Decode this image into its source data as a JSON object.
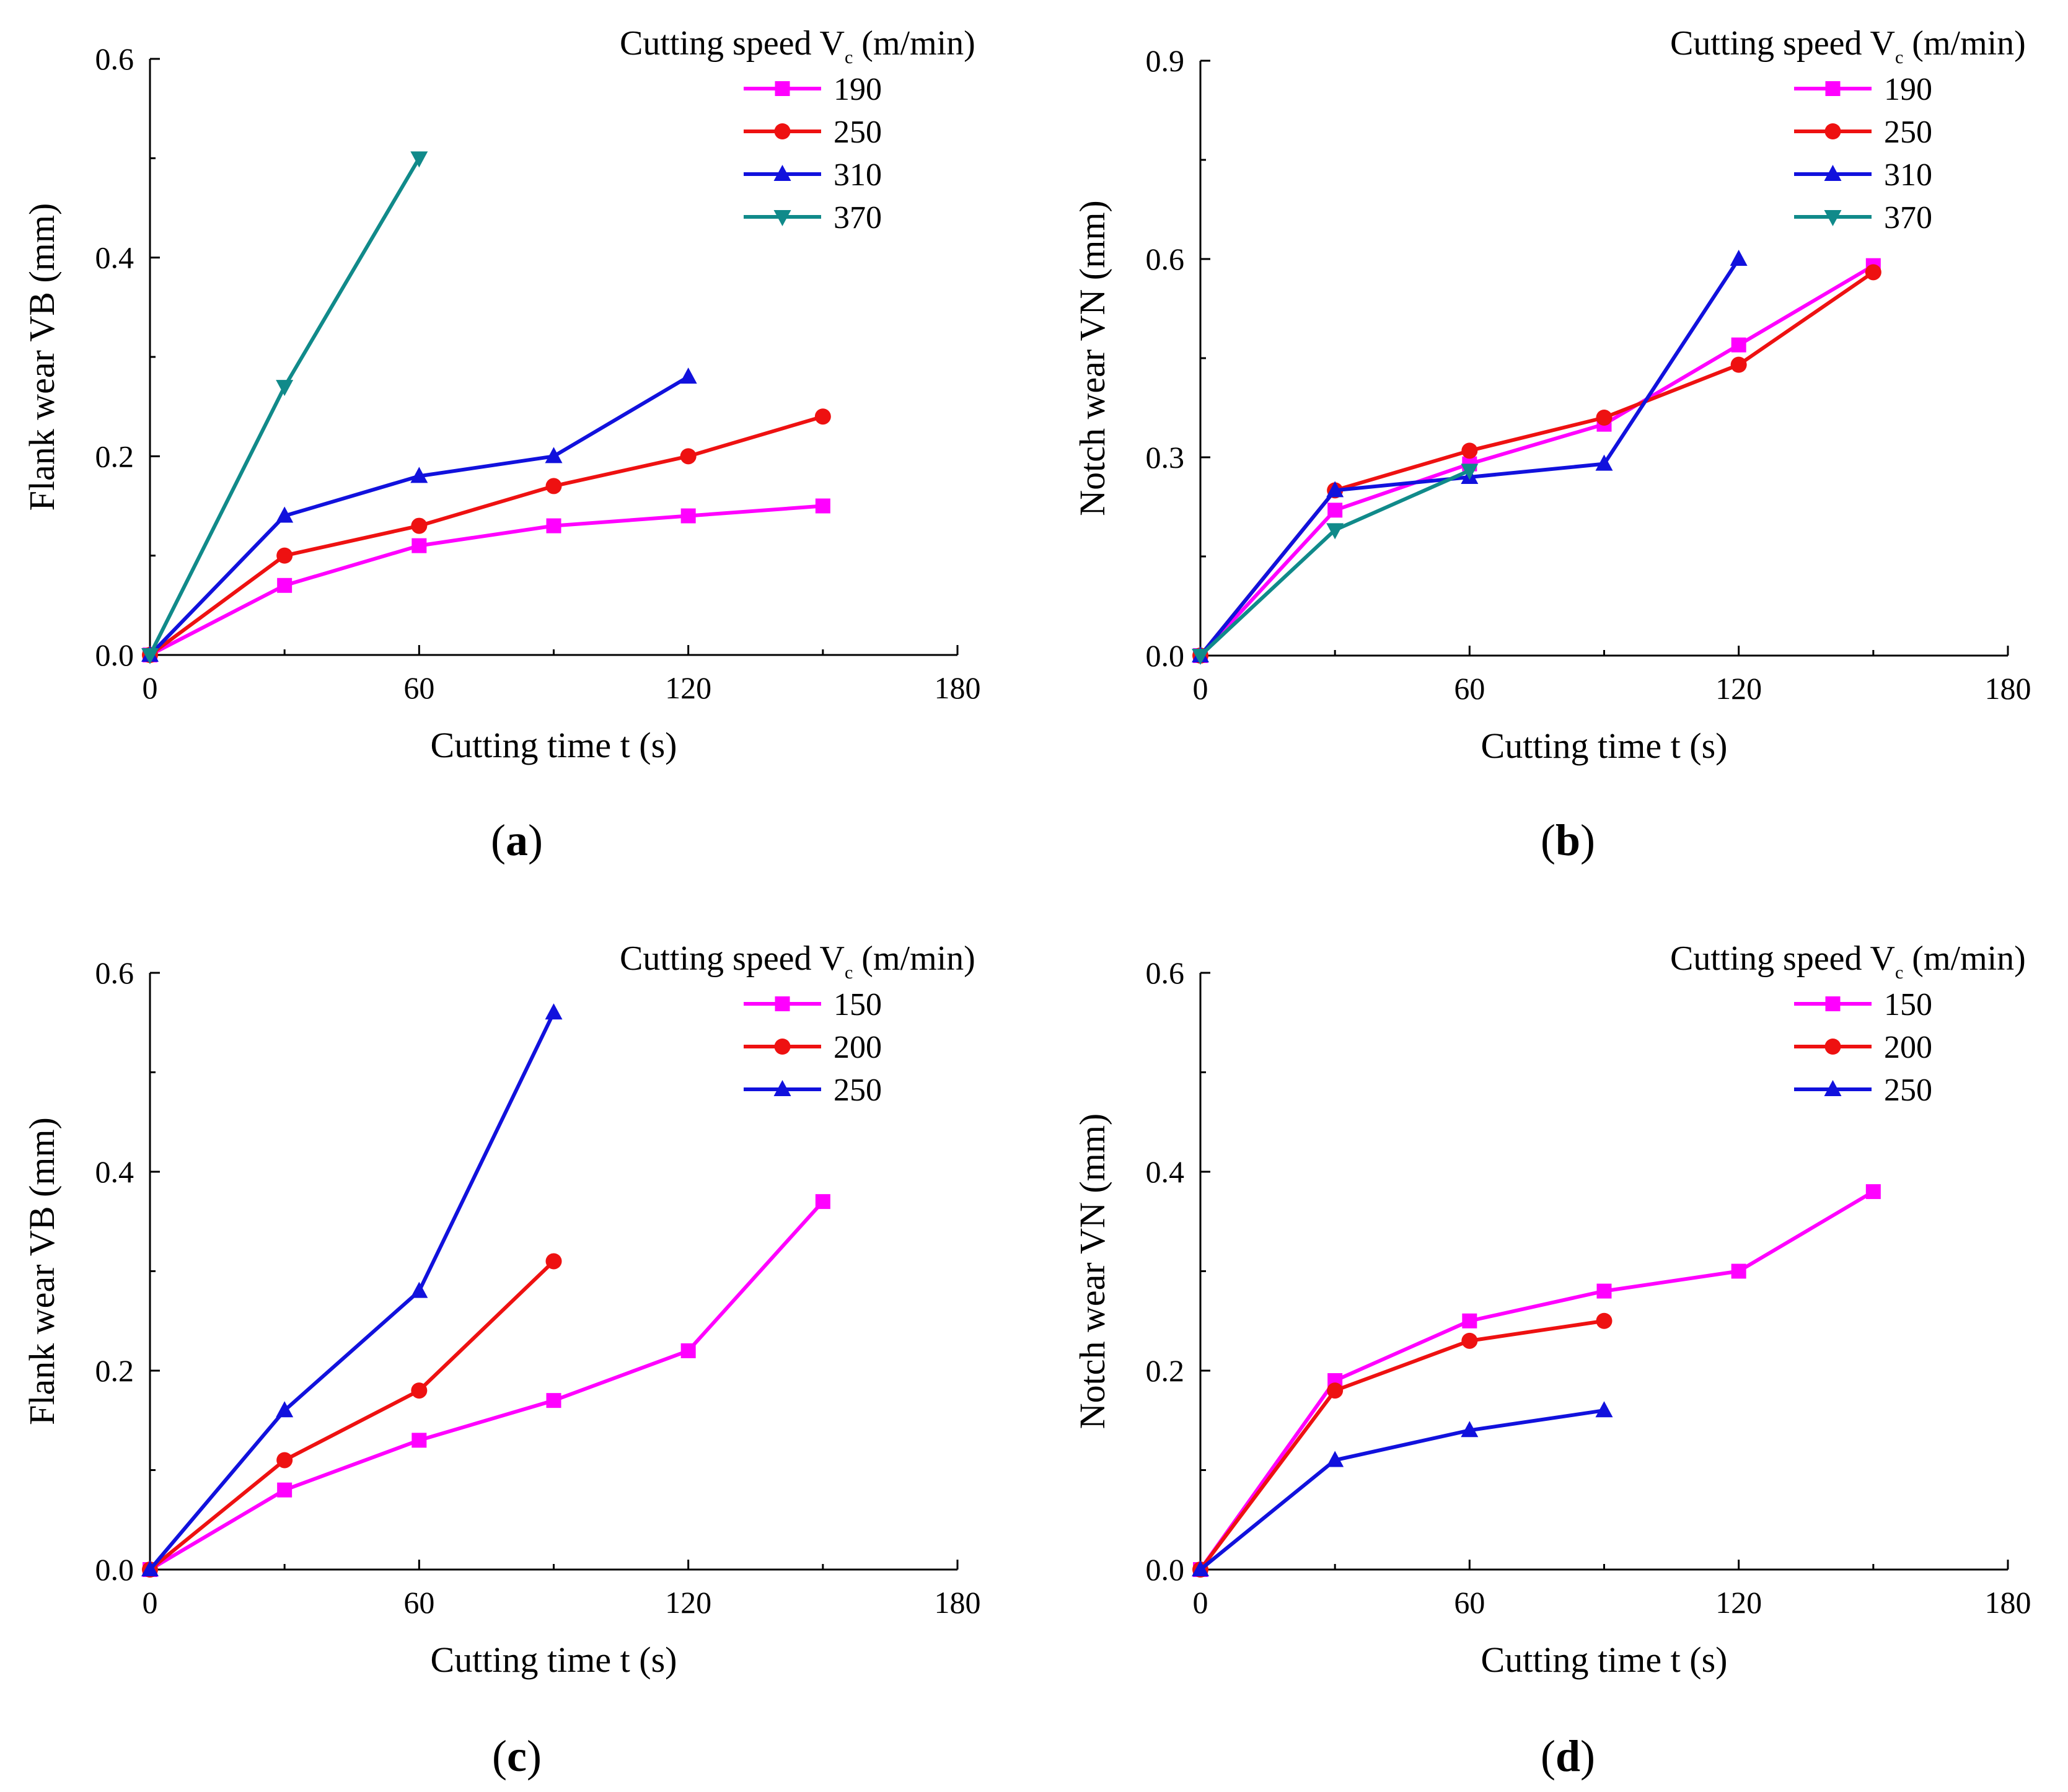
{
  "figure": {
    "legend_title_main": "Cutting speed V",
    "legend_title_sub": "c",
    "legend_title_unit": " (m/min)"
  },
  "series_styles": {
    "magenta": "#FF00FF",
    "red": "#EE1111",
    "blue": "#1111DD",
    "teal": "#108A8A"
  },
  "chart_data": [
    {
      "id": "a",
      "type": "line",
      "panel_label": "a",
      "xlabel": "Cutting time t (s)",
      "ylabel": "Flank wear VB (mm)",
      "xlim": [
        0,
        180
      ],
      "ylim": [
        0,
        0.6
      ],
      "xticks": [
        0,
        60,
        120,
        180
      ],
      "xtick_labels": [
        "0",
        "60",
        "120",
        "180"
      ],
      "yticks": [
        0,
        0.2,
        0.4,
        0.6
      ],
      "ytick_labels": [
        "0.0",
        "0.2",
        "0.4",
        "0.6"
      ],
      "legend_position": "top-right",
      "series": [
        {
          "name": "190",
          "color": "#FF00FF",
          "marker": "square",
          "x": [
            0,
            30,
            60,
            90,
            120,
            150
          ],
          "y": [
            0,
            0.07,
            0.11,
            0.13,
            0.14,
            0.15
          ]
        },
        {
          "name": "250",
          "color": "#EE1111",
          "marker": "circle",
          "x": [
            0,
            30,
            60,
            90,
            120,
            150
          ],
          "y": [
            0,
            0.1,
            0.13,
            0.17,
            0.2,
            0.24
          ]
        },
        {
          "name": "310",
          "color": "#1111DD",
          "marker": "triangle-up",
          "x": [
            0,
            30,
            60,
            90,
            120
          ],
          "y": [
            0,
            0.14,
            0.18,
            0.2,
            0.28
          ]
        },
        {
          "name": "370",
          "color": "#108A8A",
          "marker": "triangle-down",
          "x": [
            0,
            30,
            60
          ],
          "y": [
            0,
            0.27,
            0.5
          ]
        }
      ]
    },
    {
      "id": "b",
      "type": "line",
      "panel_label": "b",
      "xlabel": "Cutting time t (s)",
      "ylabel": "Notch wear VN (mm)",
      "xlim": [
        0,
        180
      ],
      "ylim": [
        0,
        0.9
      ],
      "xticks": [
        0,
        60,
        120,
        180
      ],
      "xtick_labels": [
        "0",
        "60",
        "120",
        "180"
      ],
      "yticks": [
        0,
        0.3,
        0.6,
        0.9
      ],
      "ytick_labels": [
        "0.0",
        "0.3",
        "0.6",
        "0.9"
      ],
      "legend_position": "top-right",
      "series": [
        {
          "name": "190",
          "color": "#FF00FF",
          "marker": "square",
          "x": [
            0,
            30,
            60,
            90,
            120,
            150
          ],
          "y": [
            0,
            0.22,
            0.29,
            0.35,
            0.47,
            0.59
          ]
        },
        {
          "name": "250",
          "color": "#EE1111",
          "marker": "circle",
          "x": [
            0,
            30,
            60,
            90,
            120,
            150
          ],
          "y": [
            0,
            0.25,
            0.31,
            0.36,
            0.44,
            0.58
          ]
        },
        {
          "name": "310",
          "color": "#1111DD",
          "marker": "triangle-up",
          "x": [
            0,
            30,
            60,
            90,
            120
          ],
          "y": [
            0,
            0.25,
            0.27,
            0.29,
            0.6
          ]
        },
        {
          "name": "370",
          "color": "#108A8A",
          "marker": "triangle-down",
          "x": [
            0,
            30,
            60
          ],
          "y": [
            0,
            0.19,
            0.28
          ]
        }
      ]
    },
    {
      "id": "c",
      "type": "line",
      "panel_label": "c",
      "xlabel": "Cutting time t (s)",
      "ylabel": "Flank wear VB (mm)",
      "xlim": [
        0,
        180
      ],
      "ylim": [
        0,
        0.6
      ],
      "xticks": [
        0,
        60,
        120,
        180
      ],
      "xtick_labels": [
        "0",
        "60",
        "120",
        "180"
      ],
      "yticks": [
        0,
        0.2,
        0.4,
        0.6
      ],
      "ytick_labels": [
        "0.0",
        "0.2",
        "0.4",
        "0.6"
      ],
      "legend_position": "top-right",
      "series": [
        {
          "name": "150",
          "color": "#FF00FF",
          "marker": "square",
          "x": [
            0,
            30,
            60,
            90,
            120,
            150
          ],
          "y": [
            0,
            0.08,
            0.13,
            0.17,
            0.22,
            0.37
          ]
        },
        {
          "name": "200",
          "color": "#EE1111",
          "marker": "circle",
          "x": [
            0,
            30,
            60,
            90
          ],
          "y": [
            0,
            0.11,
            0.18,
            0.31
          ]
        },
        {
          "name": "250",
          "color": "#1111DD",
          "marker": "triangle-up",
          "x": [
            0,
            30,
            60,
            90
          ],
          "y": [
            0,
            0.16,
            0.28,
            0.56
          ]
        }
      ]
    },
    {
      "id": "d",
      "type": "line",
      "panel_label": "d",
      "xlabel": "Cutting time t (s)",
      "ylabel": "Notch wear VN (mm)",
      "xlim": [
        0,
        180
      ],
      "ylim": [
        0,
        0.6
      ],
      "xticks": [
        0,
        60,
        120,
        180
      ],
      "xtick_labels": [
        "0",
        "60",
        "120",
        "180"
      ],
      "yticks": [
        0,
        0.2,
        0.4,
        0.6
      ],
      "ytick_labels": [
        "0.0",
        "0.2",
        "0.4",
        "0.6"
      ],
      "legend_position": "top-right",
      "series": [
        {
          "name": "150",
          "color": "#FF00FF",
          "marker": "square",
          "x": [
            0,
            30,
            60,
            90,
            120,
            150
          ],
          "y": [
            0,
            0.19,
            0.25,
            0.28,
            0.3,
            0.38
          ]
        },
        {
          "name": "200",
          "color": "#EE1111",
          "marker": "circle",
          "x": [
            0,
            30,
            60,
            90
          ],
          "y": [
            0,
            0.18,
            0.23,
            0.25
          ]
        },
        {
          "name": "250",
          "color": "#1111DD",
          "marker": "triangle-up",
          "x": [
            0,
            30,
            60,
            90
          ],
          "y": [
            0,
            0.11,
            0.14,
            0.16
          ]
        }
      ]
    }
  ]
}
